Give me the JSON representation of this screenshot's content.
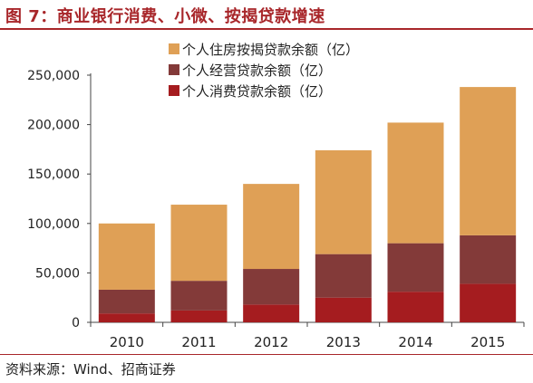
{
  "figure": {
    "title": "图 7：商业银行消费、小微、按揭贷款增速",
    "source": "资料来源：Wind、招商证券"
  },
  "chart_data": {
    "type": "bar",
    "stacked": true,
    "categories": [
      "2010",
      "2011",
      "2012",
      "2013",
      "2014",
      "2015"
    ],
    "series": [
      {
        "name": "个人消费贷款余额（亿）",
        "color": "#a51c1f",
        "values": [
          9000,
          12000,
          18000,
          25000,
          31000,
          39000
        ]
      },
      {
        "name": "个人经营贷款余额（亿）",
        "color": "#833a39",
        "values": [
          24000,
          30000,
          36000,
          44000,
          49000,
          49000
        ]
      },
      {
        "name": "个人住房按揭贷款余额（亿）",
        "color": "#dfa056",
        "values": [
          67000,
          77000,
          86000,
          105000,
          122000,
          150000
        ]
      }
    ],
    "legend_order": [
      "个人住房按揭贷款余额（亿）",
      "个人经营贷款余额（亿）",
      "个人消费贷款余额（亿）"
    ],
    "yticks": [
      "0",
      "50,000",
      "100,000",
      "150,000",
      "200,000",
      "250,000"
    ],
    "ylim": [
      0,
      250000
    ],
    "grid": false,
    "legend_position": "top-left",
    "xlabel": "",
    "ylabel": ""
  }
}
